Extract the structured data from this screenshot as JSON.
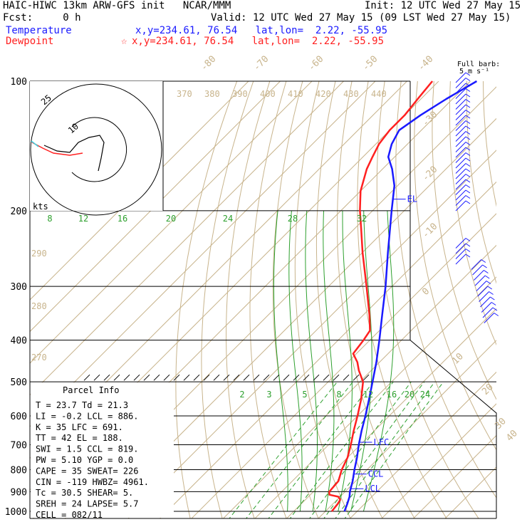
{
  "header": {
    "line1_left": "HAIC-HIWC 13km ARW-GFS init   NCAR/MMM",
    "line1_right": "Init: 12 UTC Wed 27 May 15",
    "line2_left": "Fcst:     0 h",
    "line2_right": "Valid: 12 UTC Wed 27 May 15 (09 LST Wed 27 May 15)",
    "temp_label": "Temperature",
    "temp_coords": "x,y=234.61, 76.54   lat,lon=  2.22, -55.95",
    "dew_label": "Dewpoint",
    "dew_coords": "x,y=234.61, 76.54   lat,lon=  2.22, -55.95",
    "dew_marker": "☆"
  },
  "barb_legend": {
    "line1": "Full barb:",
    "line2": "5 m s⁻¹"
  },
  "hodograph": {
    "ring_labels": [
      "25",
      "10"
    ],
    "units": "kts"
  },
  "parcel_info": {
    "title": "Parcel Info",
    "rows": [
      "T   =   23.7  Td  =  21.3",
      "LI  =   -0.2  LCL =  886.",
      "K   =    35   LFC =  691.",
      "TT  =    42   EL  =  188.",
      "SWI =    1.5  CCL =  819.",
      "PW  =   5.10  YGP =   0.0",
      "CAPE =   35   SWEAT=  226",
      "CIN =  -119   HWBZ= 4961.",
      "Tc  =  30.5   SHEAR=   5.",
      "SREH =   24   LAPSE=  5.7",
      "CELL = 082/11"
    ]
  },
  "levels": [
    {
      "name": "EL",
      "p": 188
    },
    {
      "name": "LFC",
      "p": 691
    },
    {
      "name": "CCL",
      "p": 819
    },
    {
      "name": "LCL",
      "p": 886
    }
  ],
  "colors": {
    "temperature": "#1a1aff",
    "dewpoint": "#ff2020",
    "mixing_ratio": "#2ea02e",
    "adiabat": "#c8b48c",
    "hodo_cyan": "#40d0e0"
  },
  "chart_data": {
    "type": "line",
    "subtype": "skew-T log-P",
    "pressure_ticks": [
      100,
      200,
      300,
      400,
      500,
      600,
      700,
      800,
      900,
      1000
    ],
    "isotherm_labels": [
      -80,
      -70,
      -60,
      -50,
      -40,
      -30,
      -20,
      -10,
      0,
      10,
      20,
      30,
      40
    ],
    "theta_labels_top": [
      370,
      380,
      390,
      400,
      410,
      420,
      430,
      440
    ],
    "theta_labels_left": [
      290,
      280,
      270
    ],
    "mixing_ratio_labels_upper": [
      8,
      12,
      16,
      20,
      24,
      28,
      32
    ],
    "mixing_ratio_labels_lower": [
      2,
      3,
      5,
      8,
      12,
      16,
      20,
      24
    ],
    "series": [
      {
        "name": "Temperature",
        "points": [
          [
            1000,
            26
          ],
          [
            960,
            24.5
          ],
          [
            925,
            23
          ],
          [
            900,
            21.5
          ],
          [
            850,
            19
          ],
          [
            800,
            16
          ],
          [
            750,
            13
          ],
          [
            700,
            9.5
          ],
          [
            650,
            6
          ],
          [
            600,
            2.5
          ],
          [
            550,
            -1.5
          ],
          [
            500,
            -6
          ],
          [
            450,
            -11
          ],
          [
            400,
            -17
          ],
          [
            350,
            -24
          ],
          [
            300,
            -32
          ],
          [
            250,
            -42
          ],
          [
            200,
            -54
          ],
          [
            175,
            -61
          ],
          [
            160,
            -67
          ],
          [
            150,
            -72
          ],
          [
            140,
            -75
          ],
          [
            130,
            -77
          ],
          [
            120,
            -75
          ],
          [
            110,
            -72
          ],
          [
            100,
            -68
          ]
        ]
      },
      {
        "name": "Dewpoint",
        "points": [
          [
            1000,
            22
          ],
          [
            960,
            21.5
          ],
          [
            940,
            21
          ],
          [
            925,
            19.5
          ],
          [
            915,
            16
          ],
          [
            900,
            15
          ],
          [
            850,
            14.5
          ],
          [
            800,
            12
          ],
          [
            750,
            10
          ],
          [
            700,
            7
          ],
          [
            650,
            3.5
          ],
          [
            600,
            0
          ],
          [
            550,
            -4
          ],
          [
            500,
            -9
          ],
          [
            470,
            -14
          ],
          [
            450,
            -17
          ],
          [
            430,
            -21
          ],
          [
            400,
            -22
          ],
          [
            380,
            -23
          ],
          [
            350,
            -28
          ],
          [
            300,
            -38
          ],
          [
            250,
            -50
          ],
          [
            220,
            -58
          ],
          [
            200,
            -64
          ],
          [
            180,
            -70
          ],
          [
            160,
            -75
          ],
          [
            150,
            -77
          ],
          [
            140,
            -79
          ],
          [
            130,
            -80
          ],
          [
            120,
            -80
          ],
          [
            110,
            -81
          ],
          [
            100,
            -82
          ]
        ]
      }
    ],
    "ylim": [
      1000,
      100
    ],
    "xlim": [
      -40,
      40
    ]
  }
}
